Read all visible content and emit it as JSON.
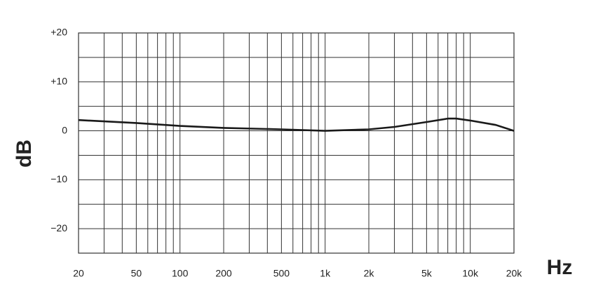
{
  "chart_data": {
    "type": "line",
    "x_scale": "log",
    "y_label": "dB",
    "x_label": "Hz",
    "xlim": [
      20,
      20000
    ],
    "ylim": [
      -25,
      20
    ],
    "xticks": [
      20,
      50,
      100,
      200,
      500,
      {
        "value": 1000,
        "label": "1k"
      },
      {
        "value": 2000,
        "label": "2k"
      },
      {
        "value": 5000,
        "label": "5k"
      },
      {
        "value": 10000,
        "label": "10k"
      },
      {
        "value": 20000,
        "label": "20k"
      }
    ],
    "x_minor_grid": [
      30,
      40,
      60,
      70,
      80,
      90,
      300,
      400,
      600,
      700,
      800,
      900,
      3000,
      4000,
      6000,
      7000,
      8000,
      9000
    ],
    "yticks": [
      {
        "value": 20,
        "label": "+20"
      },
      {
        "value": 10,
        "label": "+10"
      },
      0,
      {
        "value": -10,
        "label": "−10"
      },
      {
        "value": -20,
        "label": "−20"
      }
    ],
    "y_minor_grid": [
      15,
      5,
      -5,
      -15
    ],
    "grid": true,
    "series": [
      {
        "color": "#1a1a1a",
        "x": [
          20,
          50,
          100,
          200,
          500,
          1000,
          2000,
          3000,
          5000,
          7000,
          8000,
          10000,
          15000,
          20000
        ],
        "values": [
          2.2,
          1.6,
          1.0,
          0.6,
          0.3,
          0.0,
          0.3,
          0.8,
          1.8,
          2.5,
          2.5,
          2.1,
          1.2,
          0.0
        ]
      }
    ]
  }
}
